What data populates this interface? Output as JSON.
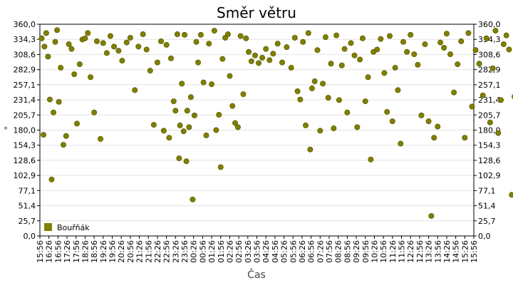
{
  "chart_data": {
    "type": "scatter",
    "title": "Směr větru",
    "xlabel": "Čas",
    "ylabel": "°",
    "ylim": [
      0,
      360
    ],
    "yticks": [
      "0,0",
      "25,7",
      "51,4",
      "77,1",
      "102,9",
      "128,6",
      "154,3",
      "180,0",
      "205,7",
      "231,4",
      "257,1",
      "282,9",
      "308,6",
      "334,3",
      "360,0"
    ],
    "xticks": [
      "15:56",
      "16:26",
      "16:56",
      "17:26",
      "17:56",
      "18:26",
      "18:56",
      "19:26",
      "19:56",
      "20:26",
      "20:56",
      "21:26",
      "21:56",
      "22:26",
      "22:56",
      "23:26",
      "23:56",
      "00:26",
      "00:56",
      "01:26",
      "01:56",
      "02:26",
      "02:56",
      "03:26",
      "03:56",
      "04:26",
      "04:56",
      "05:26",
      "05:56",
      "06:26",
      "06:56",
      "07:26",
      "07:56",
      "08:26",
      "08:56",
      "09:26",
      "09:56",
      "10:26",
      "10:56",
      "11:26",
      "11:56",
      "12:26",
      "12:56",
      "13:26",
      "13:56",
      "14:26",
      "14:56",
      "15:26",
      "15:56"
    ],
    "grid": true,
    "legend_position": "bottom-left",
    "series": [
      {
        "name": "Bouřňák",
        "color": "#808000",
        "x_start": "15:56",
        "points": [
          [
            0.2,
            336
          ],
          [
            0.4,
            172
          ],
          [
            0.5,
            322
          ],
          [
            0.7,
            345
          ],
          [
            0.9,
            305
          ],
          [
            1.1,
            232
          ],
          [
            1.3,
            96
          ],
          [
            1.5,
            210
          ],
          [
            1.7,
            330
          ],
          [
            1.9,
            350
          ],
          [
            2.1,
            228
          ],
          [
            2.3,
            286
          ],
          [
            2.6,
            155
          ],
          [
            2.9,
            170
          ],
          [
            3.2,
            326
          ],
          [
            3.5,
            318
          ],
          [
            3.8,
            275
          ],
          [
            4.1,
            191
          ],
          [
            4.4,
            292
          ],
          [
            4.7,
            334
          ],
          [
            5.0,
            336
          ],
          [
            5.3,
            345
          ],
          [
            5.6,
            270
          ],
          [
            6.0,
            210
          ],
          [
            6.3,
            331
          ],
          [
            6.7,
            165
          ],
          [
            7.0,
            328
          ],
          [
            7.4,
            311
          ],
          [
            7.8,
            340
          ],
          [
            8.2,
            322
          ],
          [
            8.7,
            315
          ],
          [
            9.1,
            298
          ],
          [
            9.6,
            329
          ],
          [
            10.0,
            337
          ],
          [
            10.5,
            248
          ],
          [
            10.9,
            322
          ],
          [
            11.4,
            343
          ],
          [
            11.8,
            317
          ],
          [
            12.2,
            281
          ],
          [
            12.6,
            189
          ],
          [
            13.0,
            295
          ],
          [
            13.4,
            331
          ],
          [
            13.7,
            179
          ],
          [
            14.0,
            325
          ],
          [
            14.3,
            167
          ],
          [
            14.5,
            302
          ],
          [
            14.8,
            229
          ],
          [
            15.0,
            213
          ],
          [
            15.2,
            343
          ],
          [
            15.4,
            132
          ],
          [
            15.5,
            188
          ],
          [
            15.7,
            259
          ],
          [
            15.9,
            178
          ],
          [
            16.0,
            342
          ],
          [
            16.2,
            127
          ],
          [
            16.3,
            213
          ],
          [
            16.5,
            185
          ],
          [
            16.7,
            236
          ],
          [
            16.9,
            62
          ],
          [
            17.1,
            205
          ],
          [
            17.3,
            330
          ],
          [
            17.5,
            295
          ],
          [
            17.8,
            342
          ],
          [
            18.1,
            261
          ],
          [
            18.4,
            171
          ],
          [
            18.7,
            327
          ],
          [
            19.0,
            258
          ],
          [
            19.3,
            349
          ],
          [
            19.5,
            180
          ],
          [
            19.8,
            206
          ],
          [
            20.0,
            117
          ],
          [
            20.2,
            301
          ],
          [
            20.5,
            337
          ],
          [
            20.8,
            343
          ],
          [
            21.0,
            272
          ],
          [
            21.3,
            221
          ],
          [
            21.6,
            192
          ],
          [
            21.9,
            185
          ],
          [
            22.2,
            340
          ],
          [
            22.5,
            241
          ],
          [
            22.8,
            336
          ],
          [
            23.1,
            313
          ],
          [
            23.4,
            297
          ],
          [
            23.8,
            307
          ],
          [
            24.2,
            294
          ],
          [
            24.6,
            303
          ],
          [
            25.0,
            318
          ],
          [
            25.4,
            299
          ],
          [
            25.8,
            310
          ],
          [
            26.3,
            327
          ],
          [
            26.8,
            295
          ],
          [
            27.3,
            321
          ],
          [
            27.8,
            286
          ],
          [
            28.2,
            337
          ],
          [
            28.5,
            246
          ],
          [
            28.8,
            232
          ],
          [
            29.1,
            330
          ],
          [
            29.4,
            188
          ],
          [
            29.7,
            345
          ],
          [
            29.9,
            147
          ],
          [
            30.1,
            251
          ],
          [
            30.4,
            263
          ],
          [
            30.7,
            316
          ],
          [
            31.0,
            179
          ],
          [
            31.3,
            259
          ],
          [
            31.6,
            338
          ],
          [
            31.9,
            235
          ],
          [
            32.2,
            293
          ],
          [
            32.5,
            183
          ],
          [
            32.8,
            341
          ],
          [
            33.1,
            231
          ],
          [
            33.4,
            290
          ],
          [
            33.7,
            318
          ],
          [
            34.0,
            210
          ],
          [
            34.4,
            328
          ],
          [
            34.8,
            307
          ],
          [
            35.1,
            185
          ],
          [
            35.4,
            300
          ],
          [
            35.7,
            336
          ],
          [
            36.0,
            229
          ],
          [
            36.3,
            270
          ],
          [
            36.6,
            130
          ],
          [
            36.9,
            313
          ],
          [
            37.3,
            317
          ],
          [
            37.7,
            335
          ],
          [
            38.1,
            277
          ],
          [
            38.4,
            211
          ],
          [
            38.7,
            340
          ],
          [
            39.0,
            195
          ],
          [
            39.3,
            286
          ],
          [
            39.6,
            248
          ],
          [
            39.9,
            157
          ],
          [
            40.2,
            330
          ],
          [
            40.6,
            313
          ],
          [
            41.0,
            342
          ],
          [
            41.4,
            309
          ],
          [
            41.8,
            291
          ],
          [
            42.2,
            205
          ],
          [
            42.6,
            326
          ],
          [
            43.0,
            195
          ],
          [
            43.3,
            34
          ],
          [
            43.6,
            167
          ],
          [
            44.0,
            186
          ],
          [
            44.3,
            329
          ],
          [
            44.7,
            320
          ],
          [
            45.0,
            344
          ],
          [
            45.4,
            309
          ],
          [
            45.8,
            244
          ],
          [
            46.2,
            292
          ],
          [
            46.6,
            331
          ],
          [
            47.0,
            167
          ],
          [
            47.4,
            345
          ],
          [
            47.8,
            220
          ],
          [
            48.2,
            316
          ],
          [
            48.6,
            293
          ],
          [
            49.0,
            239
          ],
          [
            49.4,
            336
          ],
          [
            49.8,
            193
          ],
          [
            50.1,
            285
          ],
          [
            50.4,
            349
          ],
          [
            50.7,
            175
          ],
          [
            51.0,
            231
          ],
          [
            51.3,
            326
          ],
          [
            51.6,
            341
          ],
          [
            51.9,
            317
          ],
          [
            52.2,
            70
          ],
          [
            52.5,
            237
          ],
          [
            52.8,
            198
          ],
          [
            53.1,
            344
          ],
          [
            53.4,
            263
          ],
          [
            53.7,
            129
          ],
          [
            54.0,
            311
          ],
          [
            54.3,
            186
          ],
          [
            54.6,
            332
          ],
          [
            54.9,
            294
          ],
          [
            55.2,
            343
          ],
          [
            55.6,
            222
          ],
          [
            56.0,
            320
          ],
          [
            56.4,
            290
          ],
          [
            56.8,
            199
          ],
          [
            57.2,
            338
          ],
          [
            57.6,
            261
          ],
          [
            58.0,
            328
          ],
          [
            58.4,
            306
          ],
          [
            58.8,
            344
          ],
          [
            59.2,
            250
          ],
          [
            59.6,
            310
          ],
          [
            60.0,
            117
          ],
          [
            60.3,
            197
          ],
          [
            60.6,
            328
          ],
          [
            61.0,
            337
          ],
          [
            61.4,
            313
          ],
          [
            61.8,
            286
          ],
          [
            62.2,
            290
          ],
          [
            62.6,
            215
          ],
          [
            63.0,
            327
          ],
          [
            63.4,
            345
          ],
          [
            63.8,
            290
          ],
          [
            64.2,
            310
          ],
          [
            64.6,
            186
          ],
          [
            64.9,
            176
          ],
          [
            65.2,
            300
          ],
          [
            65.5,
            163
          ],
          [
            65.7,
            230
          ],
          [
            65.9,
            107
          ],
          [
            66.1,
            282
          ]
        ]
      }
    ]
  }
}
